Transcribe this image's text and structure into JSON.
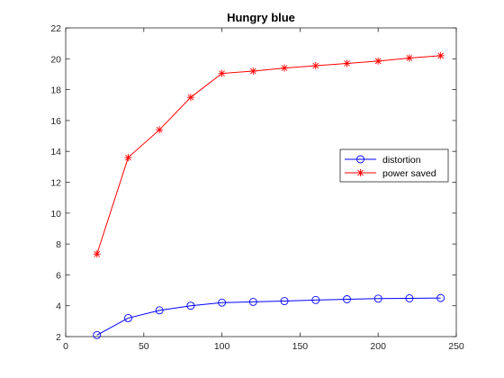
{
  "chart_data": {
    "type": "line",
    "title": "Hungry blue",
    "xlabel": "",
    "ylabel": "",
    "xlim": [
      0,
      250
    ],
    "ylim": [
      2,
      22
    ],
    "xticks": [
      0,
      50,
      100,
      150,
      200,
      250
    ],
    "yticks": [
      2,
      4,
      6,
      8,
      10,
      12,
      14,
      16,
      18,
      20,
      22
    ],
    "grid": false,
    "legend_position": "middle-right",
    "x": [
      20,
      40,
      60,
      80,
      100,
      120,
      140,
      160,
      180,
      200,
      220,
      240
    ],
    "series": [
      {
        "name": "distortion",
        "color": "#0000ff",
        "marker": "circle",
        "values": [
          2.1,
          3.2,
          3.7,
          4.0,
          4.2,
          4.25,
          4.3,
          4.37,
          4.42,
          4.46,
          4.48,
          4.5
        ]
      },
      {
        "name": "power saved",
        "color": "#ff0000",
        "marker": "asterisk",
        "values": [
          7.35,
          13.6,
          15.4,
          17.5,
          19.05,
          19.2,
          19.4,
          19.55,
          19.7,
          19.85,
          20.05,
          20.2
        ]
      }
    ]
  }
}
